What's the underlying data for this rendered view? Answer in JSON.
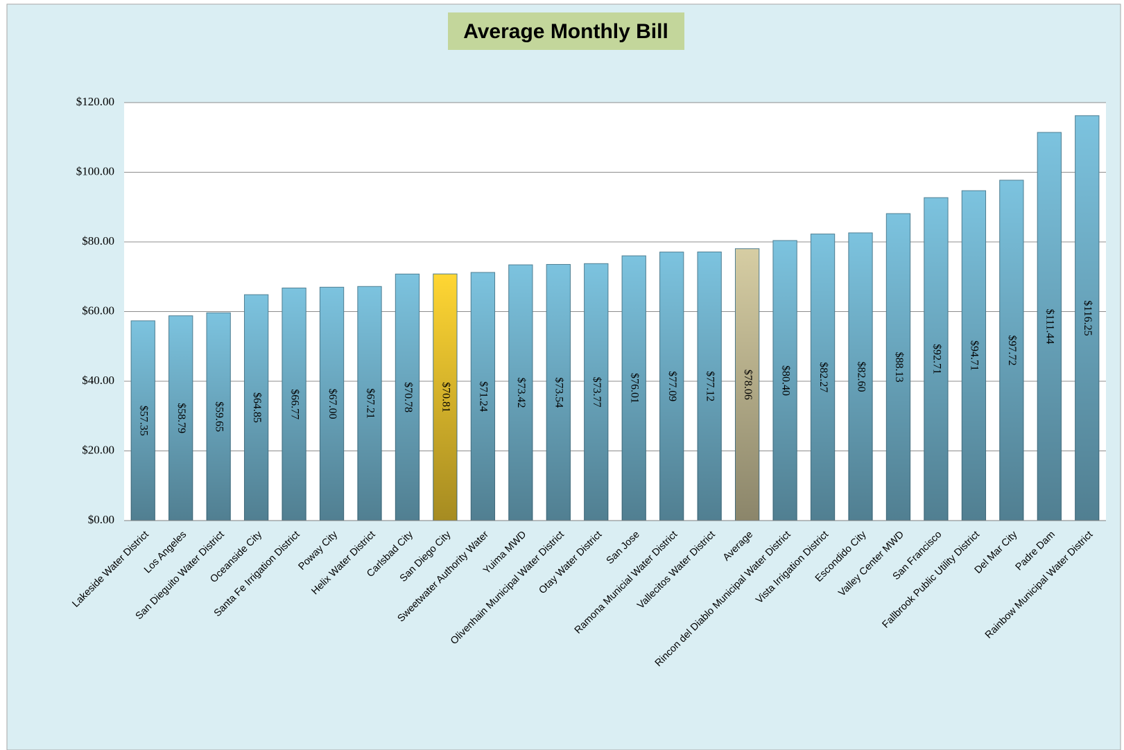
{
  "chart_data": {
    "type": "bar",
    "title": "Average Monthly Bill",
    "categories": [
      "Lakeside Water District",
      "Los Angeles",
      "San Dieguito Water District",
      "Oceanside City",
      "Santa Fe Irrigation District",
      "Poway City",
      "Helix Water District",
      "Carlsbad City",
      "San Diego City",
      "Sweetwater Authority Water",
      "Yuima MWD",
      "Olivenhain Municipal Water District",
      "Otay Water District",
      "San Jose",
      "Ramona Municial Water District",
      "Vallecitos Water District",
      "Average",
      "Rincon del Diablo Municipal Water District",
      "Vista Irrigation District",
      "Escondido City",
      "Valley Center MWD",
      "San Francisco",
      "Fallbrook Public Utility District",
      "Del Mar City",
      "Padre Dam",
      "Rainbow Municipal Water District"
    ],
    "values": [
      57.35,
      58.79,
      59.65,
      64.85,
      66.77,
      67.0,
      67.21,
      70.78,
      70.81,
      71.24,
      73.42,
      73.54,
      73.77,
      76.01,
      77.09,
      77.12,
      78.06,
      80.4,
      82.27,
      82.6,
      88.13,
      92.71,
      94.71,
      97.72,
      111.44,
      116.25
    ],
    "value_labels": [
      "$57.35",
      "$58.79",
      "$59.65",
      "$64.85",
      "$66.77",
      "$67.00",
      "$67.21",
      "$70.78",
      "$70.81",
      "$71.24",
      "$73.42",
      "$73.54",
      "$73.77",
      "$76.01",
      "$77.09",
      "$77.12",
      "$78.06",
      "$80.40",
      "$82.27",
      "$82.60",
      "$88.13",
      "$92.71",
      "$94.71",
      "$97.72",
      "$111.44",
      "$116.25"
    ],
    "colors": [
      "#7cc3df",
      "#7cc3df",
      "#7cc3df",
      "#7cc3df",
      "#7cc3df",
      "#7cc3df",
      "#7cc3df",
      "#7cc3df",
      "#ffd633",
      "#7cc3df",
      "#7cc3df",
      "#7cc3df",
      "#7cc3df",
      "#7cc3df",
      "#7cc3df",
      "#7cc3df",
      "#d6cda3",
      "#7cc3df",
      "#7cc3df",
      "#7cc3df",
      "#7cc3df",
      "#7cc3df",
      "#7cc3df",
      "#7cc3df",
      "#7cc3df",
      "#7cc3df"
    ],
    "ylim": [
      0,
      120
    ],
    "yticks": [
      {
        "value": 0,
        "label": "$0.00"
      },
      {
        "value": 20,
        "label": "$20.00"
      },
      {
        "value": 40,
        "label": "$40.00"
      },
      {
        "value": 60,
        "label": "$60.00"
      },
      {
        "value": 80,
        "label": "$80.00"
      },
      {
        "value": 100,
        "label": "$100.00"
      },
      {
        "value": 120,
        "label": "$120.00"
      }
    ],
    "grid": true
  }
}
